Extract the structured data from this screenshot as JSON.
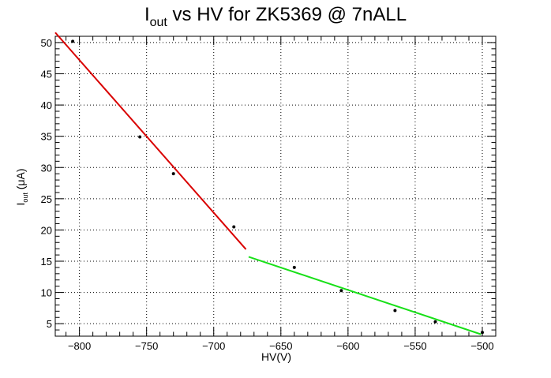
{
  "chart_data": {
    "type": "scatter",
    "title_main": "I",
    "title_sub": "out",
    "title_rest": " vs HV for ZK5369 @ 7nALL",
    "xlabel": "HV(V)",
    "ylabel_main": "I",
    "ylabel_sub": "out",
    "ylabel_rest": " (μA)",
    "xlim": [
      -818,
      -490
    ],
    "ylim": [
      3,
      51
    ],
    "x_ticks": [
      -800,
      -750,
      -700,
      -650,
      -600,
      -550,
      -500
    ],
    "x_tick_labels": [
      "−800",
      "−750",
      "−700",
      "−650",
      "−600",
      "−550",
      "−500"
    ],
    "y_ticks": [
      5,
      10,
      15,
      20,
      25,
      30,
      35,
      40,
      45,
      50
    ],
    "y_tick_labels": [
      "5",
      "10",
      "15",
      "20",
      "25",
      "30",
      "35",
      "40",
      "45",
      "50"
    ],
    "grid": true,
    "points": {
      "x": [
        -805,
        -755,
        -730,
        -685,
        -640,
        -605,
        -565,
        -535,
        -500
      ],
      "y": [
        50.2,
        34.9,
        29.0,
        20.5,
        14.0,
        10.3,
        7.1,
        5.3,
        3.6
      ]
    },
    "fit_high": {
      "x": [
        -818,
        -676
      ],
      "y": [
        51.6,
        16.9
      ],
      "color": "#d90000"
    },
    "fit_low": {
      "x": [
        -674,
        -501
      ],
      "y": [
        15.7,
        3.3
      ],
      "color": "#18e018"
    }
  }
}
